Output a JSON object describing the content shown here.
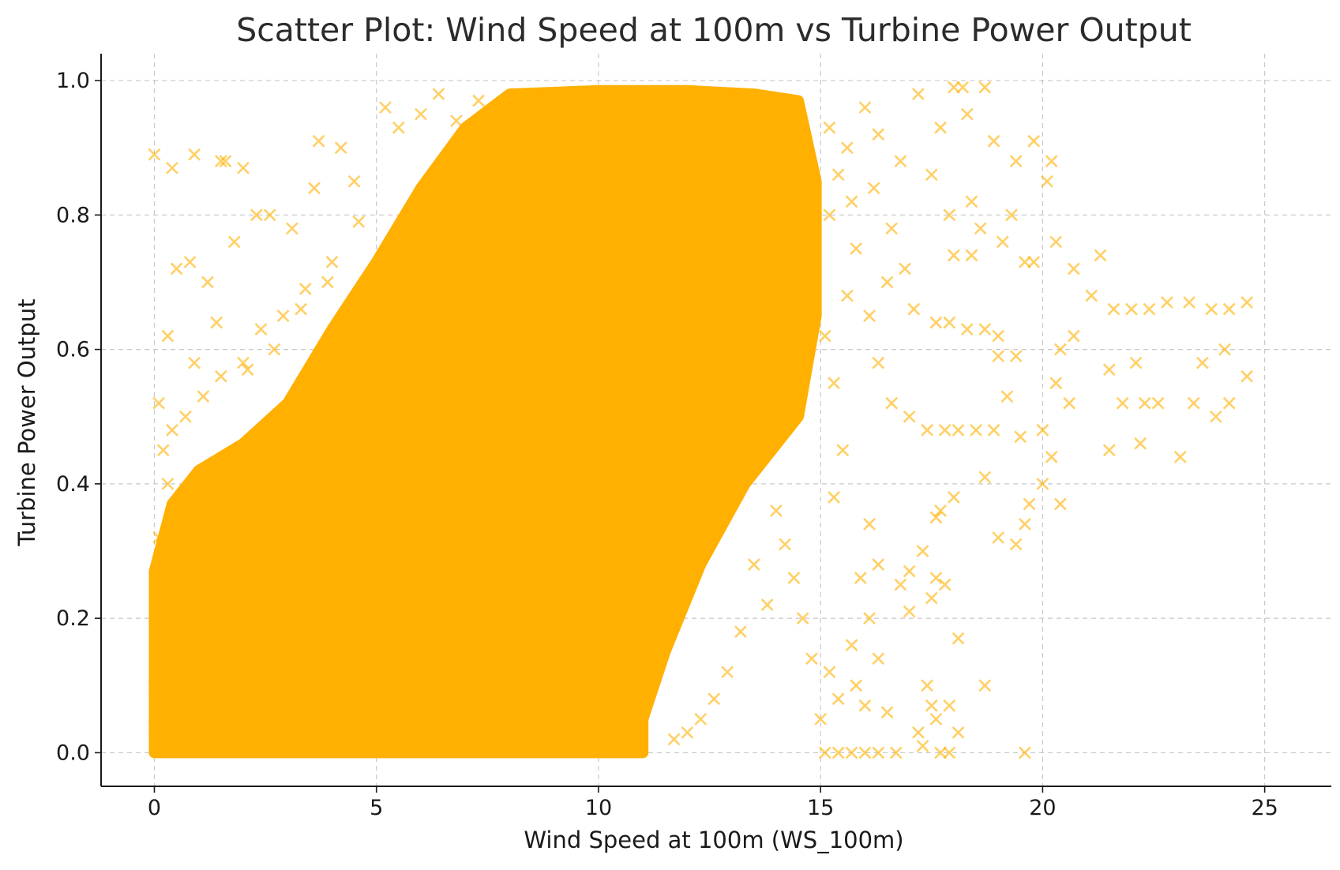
{
  "chart_data": {
    "type": "scatter",
    "title": "Scatter Plot: Wind Speed at 100m vs Turbine Power Output",
    "xlabel": "Wind Speed at 100m (WS_100m)",
    "ylabel": "Turbine Power Output",
    "xlim": [
      -1.2,
      26.5
    ],
    "ylim": [
      -0.05,
      1.04
    ],
    "xticks": [
      0,
      5,
      10,
      15,
      20,
      25
    ],
    "xtick_labels": [
      "0",
      "5",
      "10",
      "15",
      "20",
      "25"
    ],
    "yticks": [
      0.0,
      0.2,
      0.4,
      0.6,
      0.8,
      1.0
    ],
    "ytick_labels": [
      "0.0",
      "0.2",
      "0.4",
      "0.6",
      "0.8",
      "1.0"
    ],
    "grid": true,
    "marker": "x",
    "color": "#FFB000",
    "series": [
      {
        "dense_region_polygon": [
          [
            0.0,
            0.0
          ],
          [
            0.0,
            0.27
          ],
          [
            0.4,
            0.37
          ],
          [
            1.0,
            0.42
          ],
          [
            2.0,
            0.46
          ],
          [
            3.0,
            0.52
          ],
          [
            4.0,
            0.63
          ],
          [
            5.0,
            0.73
          ],
          [
            6.0,
            0.84
          ],
          [
            7.0,
            0.93
          ],
          [
            8.0,
            0.98
          ],
          [
            10.0,
            0.985
          ],
          [
            12.0,
            0.985
          ],
          [
            13.5,
            0.98
          ],
          [
            14.5,
            0.97
          ],
          [
            14.9,
            0.85
          ],
          [
            14.9,
            0.65
          ],
          [
            14.5,
            0.5
          ],
          [
            13.3,
            0.4
          ],
          [
            12.3,
            0.28
          ],
          [
            11.5,
            0.15
          ],
          [
            11.0,
            0.05
          ],
          [
            11.0,
            0.0
          ]
        ],
        "points": [
          [
            0.0,
            0.89
          ],
          [
            0.4,
            0.87
          ],
          [
            0.9,
            0.89
          ],
          [
            1.5,
            0.88
          ],
          [
            1.6,
            0.88
          ],
          [
            2.0,
            0.87
          ],
          [
            3.7,
            0.91
          ],
          [
            4.2,
            0.9
          ],
          [
            0.5,
            0.72
          ],
          [
            0.8,
            0.73
          ],
          [
            1.2,
            0.7
          ],
          [
            1.8,
            0.76
          ],
          [
            2.3,
            0.8
          ],
          [
            2.6,
            0.8
          ],
          [
            3.1,
            0.78
          ],
          [
            3.6,
            0.84
          ],
          [
            0.3,
            0.62
          ],
          [
            0.9,
            0.58
          ],
          [
            1.4,
            0.64
          ],
          [
            2.1,
            0.57
          ],
          [
            2.7,
            0.6
          ],
          [
            3.3,
            0.66
          ],
          [
            3.9,
            0.7
          ],
          [
            4.5,
            0.85
          ],
          [
            5.2,
            0.96
          ],
          [
            5.5,
            0.93
          ],
          [
            6.0,
            0.95
          ],
          [
            6.4,
            0.98
          ],
          [
            6.8,
            0.94
          ],
          [
            7.3,
            0.97
          ],
          [
            0.1,
            0.52
          ],
          [
            0.2,
            0.45
          ],
          [
            0.4,
            0.48
          ],
          [
            0.7,
            0.5
          ],
          [
            1.1,
            0.53
          ],
          [
            1.5,
            0.56
          ],
          [
            2.0,
            0.58
          ],
          [
            2.4,
            0.63
          ],
          [
            2.9,
            0.65
          ],
          [
            3.4,
            0.69
          ],
          [
            4.0,
            0.73
          ],
          [
            4.6,
            0.79
          ],
          [
            15.2,
            0.93
          ],
          [
            15.6,
            0.9
          ],
          [
            16.0,
            0.96
          ],
          [
            16.3,
            0.92
          ],
          [
            16.8,
            0.88
          ],
          [
            17.2,
            0.98
          ],
          [
            17.7,
            0.93
          ],
          [
            18.0,
            0.99
          ],
          [
            18.2,
            0.99
          ],
          [
            18.7,
            0.99
          ],
          [
            18.3,
            0.95
          ],
          [
            18.9,
            0.91
          ],
          [
            19.4,
            0.88
          ],
          [
            19.8,
            0.91
          ],
          [
            20.1,
            0.85
          ],
          [
            20.2,
            0.88
          ],
          [
            17.5,
            0.86
          ],
          [
            17.9,
            0.8
          ],
          [
            18.4,
            0.82
          ],
          [
            18.6,
            0.78
          ],
          [
            19.1,
            0.76
          ],
          [
            19.6,
            0.73
          ],
          [
            20.3,
            0.76
          ],
          [
            20.7,
            0.72
          ],
          [
            21.3,
            0.74
          ],
          [
            21.1,
            0.68
          ],
          [
            21.6,
            0.66
          ],
          [
            22.0,
            0.66
          ],
          [
            22.4,
            0.66
          ],
          [
            22.8,
            0.67
          ],
          [
            23.3,
            0.67
          ],
          [
            23.8,
            0.66
          ],
          [
            24.2,
            0.66
          ],
          [
            24.6,
            0.67
          ],
          [
            23.6,
            0.58
          ],
          [
            24.1,
            0.6
          ],
          [
            24.6,
            0.56
          ],
          [
            23.4,
            0.52
          ],
          [
            23.9,
            0.5
          ],
          [
            24.2,
            0.52
          ],
          [
            22.6,
            0.52
          ],
          [
            23.1,
            0.44
          ],
          [
            21.5,
            0.57
          ],
          [
            22.1,
            0.58
          ],
          [
            21.8,
            0.52
          ],
          [
            22.3,
            0.52
          ],
          [
            22.2,
            0.46
          ],
          [
            21.5,
            0.45
          ],
          [
            20.4,
            0.6
          ],
          [
            20.7,
            0.62
          ],
          [
            20.3,
            0.55
          ],
          [
            20.6,
            0.52
          ],
          [
            20.0,
            0.48
          ],
          [
            20.2,
            0.44
          ],
          [
            19.5,
            0.47
          ],
          [
            19.2,
            0.53
          ],
          [
            18.9,
            0.48
          ],
          [
            18.5,
            0.48
          ],
          [
            18.1,
            0.48
          ],
          [
            17.8,
            0.48
          ],
          [
            17.4,
            0.48
          ],
          [
            17.0,
            0.5
          ],
          [
            16.6,
            0.52
          ],
          [
            16.3,
            0.58
          ],
          [
            16.1,
            0.65
          ],
          [
            16.5,
            0.7
          ],
          [
            17.1,
            0.66
          ],
          [
            17.6,
            0.64
          ],
          [
            17.9,
            0.64
          ],
          [
            18.3,
            0.63
          ],
          [
            18.7,
            0.63
          ],
          [
            19.0,
            0.62
          ],
          [
            18.0,
            0.74
          ],
          [
            18.4,
            0.74
          ],
          [
            19.3,
            0.8
          ],
          [
            19.8,
            0.73
          ],
          [
            19.4,
            0.59
          ],
          [
            19.0,
            0.59
          ],
          [
            20.0,
            0.4
          ],
          [
            19.7,
            0.37
          ],
          [
            20.4,
            0.37
          ],
          [
            19.6,
            0.34
          ],
          [
            19.4,
            0.31
          ],
          [
            19.0,
            0.32
          ],
          [
            18.7,
            0.41
          ],
          [
            18.0,
            0.38
          ],
          [
            17.7,
            0.36
          ],
          [
            17.6,
            0.35
          ],
          [
            17.3,
            0.3
          ],
          [
            17.6,
            0.26
          ],
          [
            17.5,
            0.23
          ],
          [
            17.8,
            0.25
          ],
          [
            17.0,
            0.27
          ],
          [
            16.8,
            0.25
          ],
          [
            17.0,
            0.21
          ],
          [
            16.1,
            0.34
          ],
          [
            16.3,
            0.28
          ],
          [
            15.9,
            0.26
          ],
          [
            16.1,
            0.2
          ],
          [
            15.7,
            0.16
          ],
          [
            16.3,
            0.14
          ],
          [
            18.1,
            0.17
          ],
          [
            18.7,
            0.1
          ],
          [
            17.4,
            0.1
          ],
          [
            17.5,
            0.07
          ],
          [
            17.9,
            0.07
          ],
          [
            17.6,
            0.05
          ],
          [
            17.2,
            0.03
          ],
          [
            17.3,
            0.01
          ],
          [
            17.7,
            0.0
          ],
          [
            17.9,
            0.0
          ],
          [
            18.1,
            0.03
          ],
          [
            19.6,
            0.0
          ],
          [
            16.7,
            0.0
          ],
          [
            16.3,
            0.0
          ],
          [
            16.0,
            0.0
          ],
          [
            15.7,
            0.0
          ],
          [
            15.4,
            0.0
          ],
          [
            15.1,
            0.0
          ],
          [
            16.5,
            0.06
          ],
          [
            16.0,
            0.07
          ],
          [
            15.8,
            0.1
          ],
          [
            15.4,
            0.08
          ],
          [
            15.2,
            0.12
          ],
          [
            15.0,
            0.05
          ],
          [
            14.8,
            0.14
          ],
          [
            14.6,
            0.2
          ],
          [
            14.4,
            0.26
          ],
          [
            14.2,
            0.31
          ],
          [
            14.0,
            0.36
          ],
          [
            13.8,
            0.22
          ],
          [
            13.5,
            0.28
          ],
          [
            13.2,
            0.18
          ],
          [
            12.9,
            0.12
          ],
          [
            12.6,
            0.08
          ],
          [
            12.3,
            0.05
          ],
          [
            12.0,
            0.03
          ],
          [
            11.7,
            0.02
          ],
          [
            15.3,
            0.38
          ],
          [
            15.5,
            0.45
          ],
          [
            15.3,
            0.55
          ],
          [
            15.1,
            0.62
          ],
          [
            15.6,
            0.68
          ],
          [
            15.8,
            0.75
          ],
          [
            15.2,
            0.8
          ],
          [
            15.4,
            0.86
          ],
          [
            15.7,
            0.82
          ],
          [
            16.2,
            0.84
          ],
          [
            16.6,
            0.78
          ],
          [
            16.9,
            0.72
          ],
          [
            0.0,
            0.1
          ],
          [
            0.1,
            0.18
          ],
          [
            0.2,
            0.26
          ],
          [
            0.1,
            0.32
          ],
          [
            0.3,
            0.4
          ],
          [
            0.0,
            0.04
          ]
        ]
      }
    ]
  }
}
